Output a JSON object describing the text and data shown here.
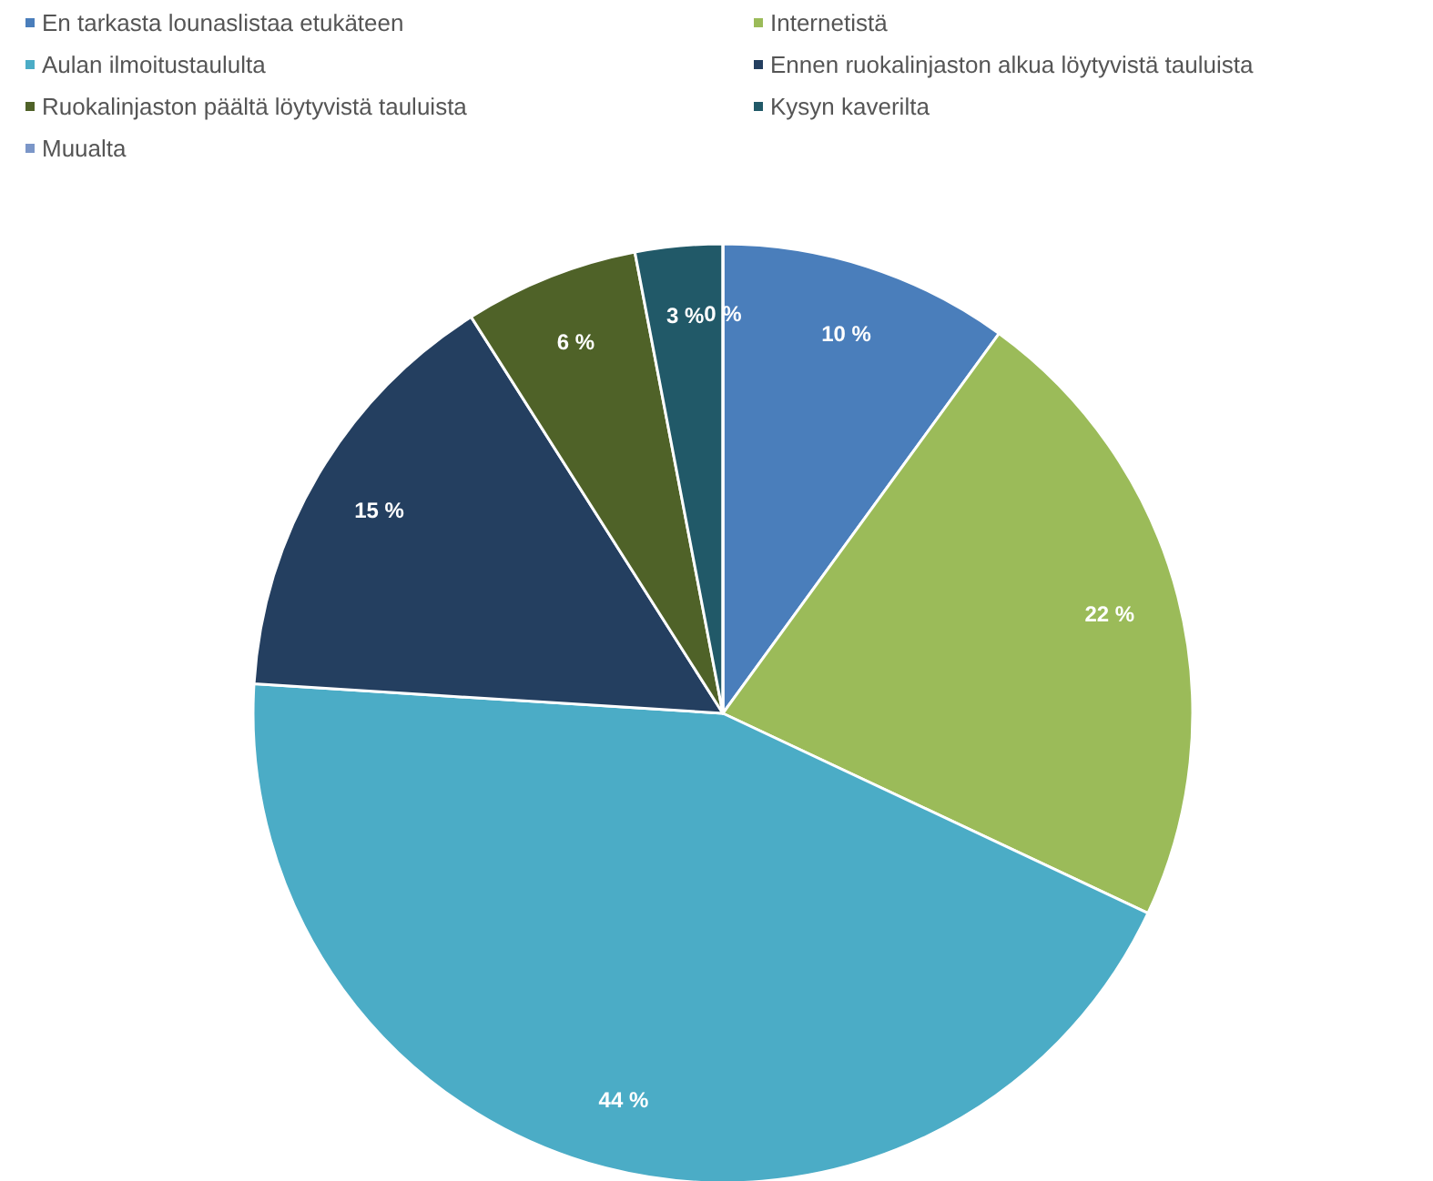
{
  "chart_data": {
    "type": "pie",
    "categories": [
      "En tarkasta lounaslistaa etukäteen",
      "Internetistä",
      "Aulan ilmoitustaululta",
      "Ennen ruokalinjaston alkua löytyvistä tauluista",
      "Ruokalinjaston päältä löytyvistä tauluista",
      "Kysyn kaverilta",
      "Muualta"
    ],
    "values": [
      10,
      22,
      44,
      15,
      6,
      3,
      0
    ],
    "value_labels": [
      "10 %",
      "22 %",
      "44 %",
      "15 %",
      "6 %",
      "3 %",
      "0 %"
    ],
    "colors": [
      "#4a7ebb",
      "#9bbb59",
      "#4bacc6",
      "#243f60",
      "#4f6228",
      "#215968",
      "#7b96c8"
    ],
    "legend": "top left"
  }
}
